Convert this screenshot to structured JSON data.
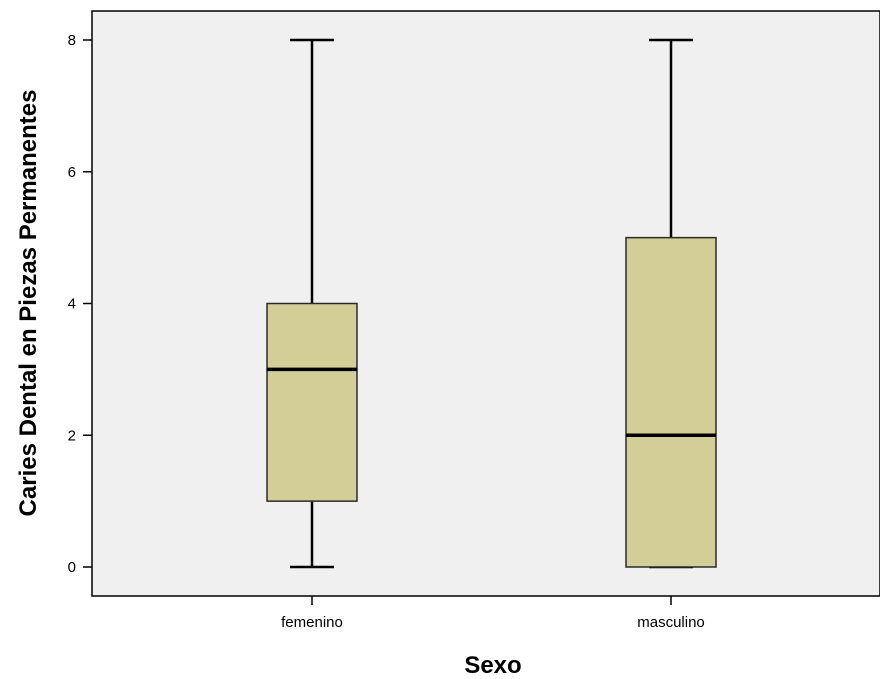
{
  "chart_data": {
    "type": "boxplot",
    "xlabel": "Sexo",
    "ylabel": "Caries Dental en Piezas Permanentes",
    "categories": [
      "femenino",
      "masculino"
    ],
    "boxes": [
      {
        "category": "femenino",
        "min": 0,
        "q1": 1,
        "median": 3,
        "q3": 4,
        "max": 8
      },
      {
        "category": "masculino",
        "min": 0,
        "q1": 0,
        "median": 2,
        "q3": 5,
        "max": 8
      }
    ],
    "yticks": [
      0,
      2,
      4,
      6,
      8
    ],
    "ylim": [
      -0.45,
      8.45
    ],
    "grid": false,
    "colors": {
      "plot_background": "#f0f0f0",
      "box_fill": "#d3ce97",
      "stroke": "#000000"
    }
  }
}
